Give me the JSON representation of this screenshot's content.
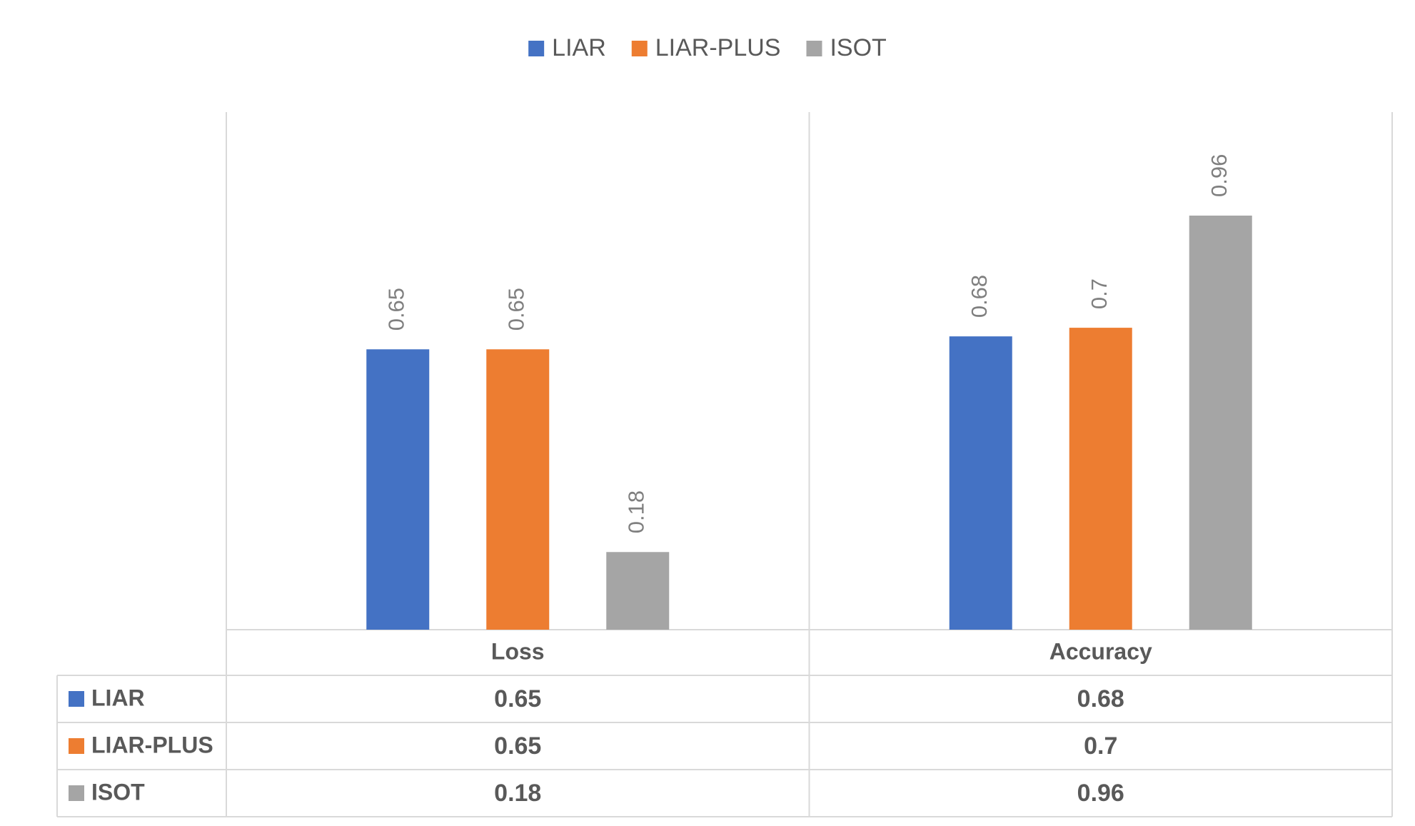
{
  "chart_data": {
    "type": "bar",
    "categories": [
      "Loss",
      "Accuracy"
    ],
    "series": [
      {
        "name": "LIAR",
        "values": [
          0.65,
          0.68
        ],
        "value_labels": [
          "0.65",
          "0.68"
        ],
        "color": "#4472C4"
      },
      {
        "name": "LIAR-PLUS",
        "values": [
          0.65,
          0.7
        ],
        "value_labels": [
          "0.65",
          "0.7"
        ],
        "color": "#ED7D31"
      },
      {
        "name": "ISOT",
        "values": [
          0.18,
          0.96
        ],
        "value_labels": [
          "0.18",
          "0.96"
        ],
        "color": "#A5A5A5"
      }
    ],
    "title": "",
    "xlabel": "",
    "ylabel": "",
    "ylim": [
      0,
      1.2
    ],
    "grid": false,
    "legend_position": "top",
    "data_table": true,
    "data_labels": "rotated-vertical"
  }
}
